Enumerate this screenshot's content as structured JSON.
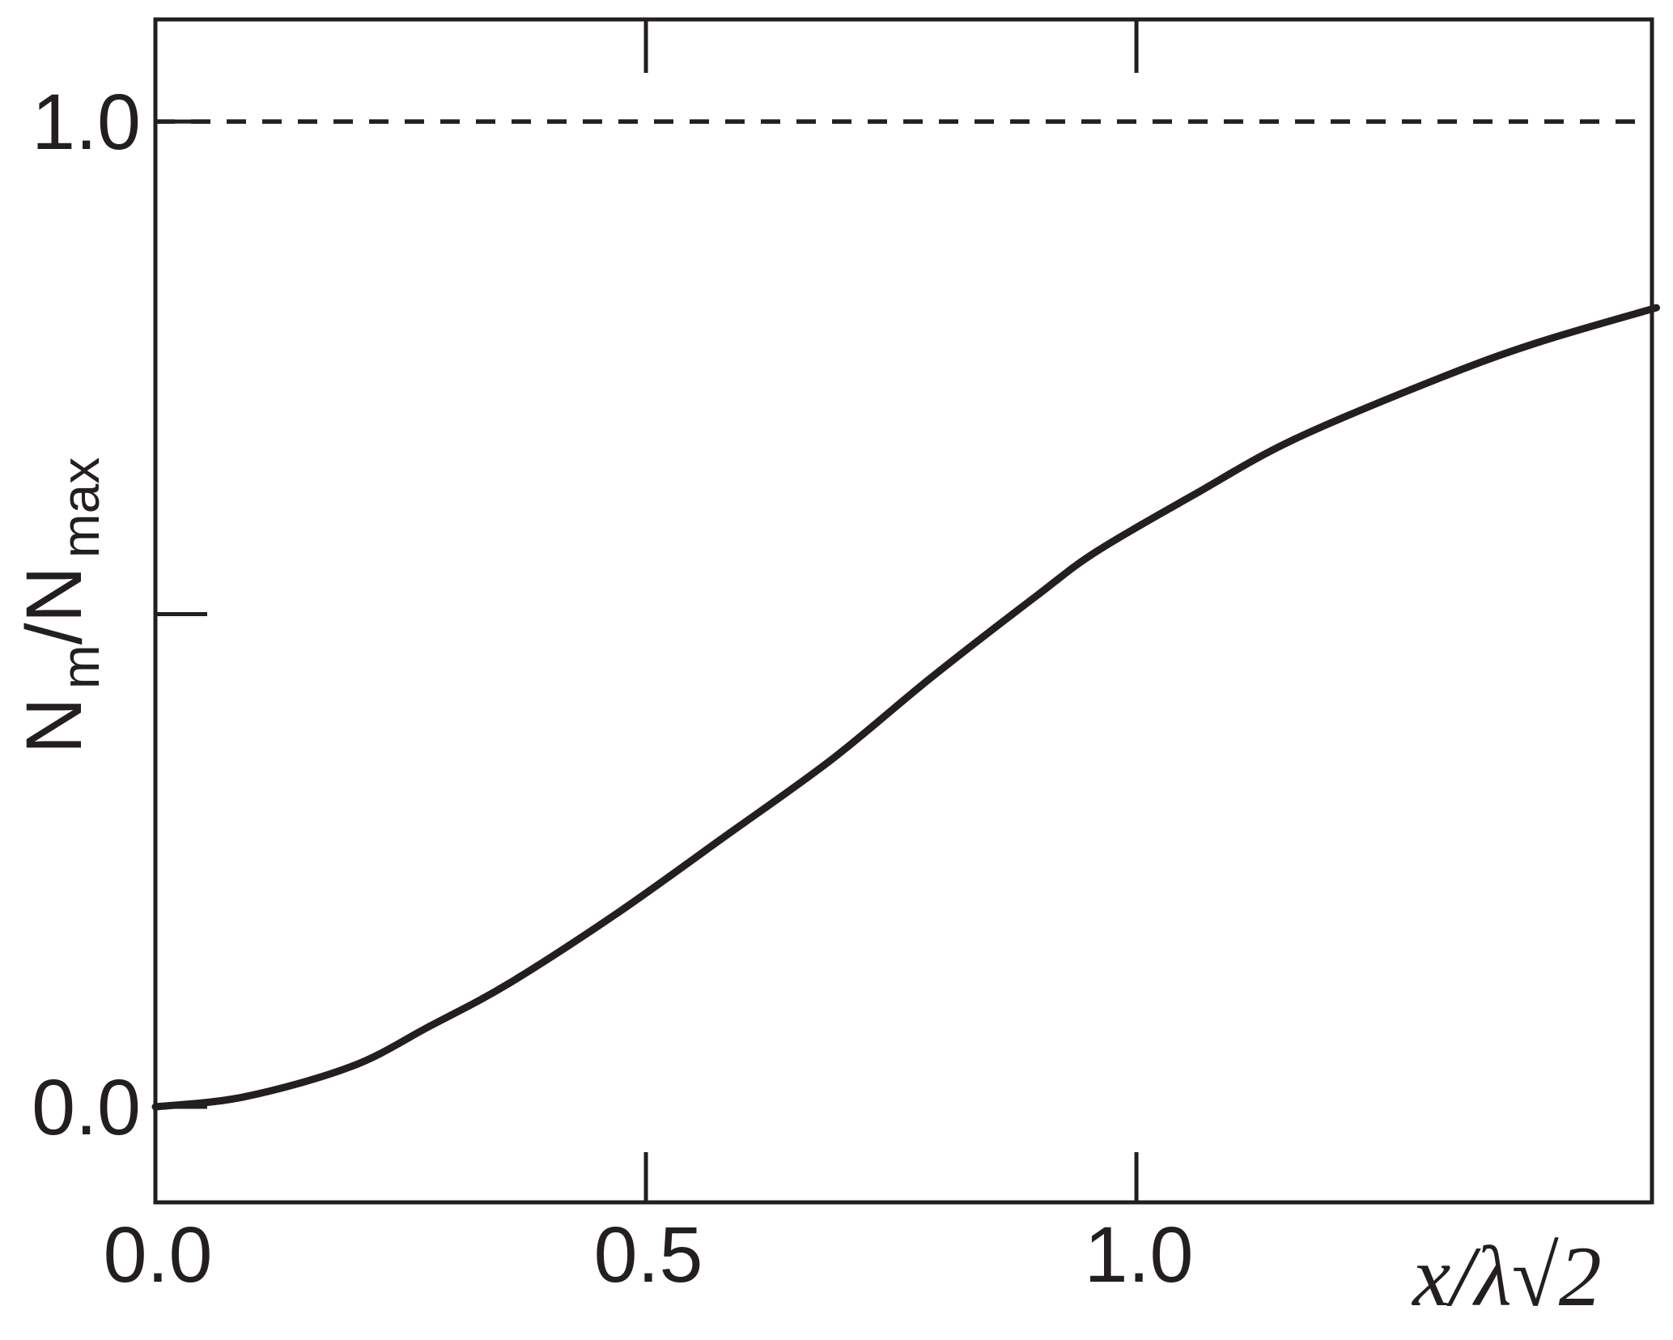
{
  "figure": {
    "background": "#ffffff",
    "ink_color": "#231f20"
  },
  "chart_data": {
    "type": "line",
    "title": "",
    "xlabel": "x/λ√2",
    "ylabel": "N_m/N_max",
    "ylabel_parts": [
      {
        "text": "N",
        "sub": false
      },
      {
        "text": "m",
        "sub": true
      },
      {
        "text": "/N",
        "sub": false
      },
      {
        "text": "max",
        "sub": true
      }
    ],
    "xlim": [
      0,
      1.5255
    ],
    "ylim": [
      -0.097,
      1.1036
    ],
    "grid": false,
    "legend": "none",
    "x_ticks": [
      {
        "value": 0.0,
        "label": "0.0",
        "mark": false
      },
      {
        "value": 0.5,
        "label": "0.5",
        "mark": true
      },
      {
        "value": 1.0,
        "label": "1.0",
        "mark": true
      }
    ],
    "x_ticks_top": [
      0.5,
      1.0
    ],
    "y_ticks": [
      {
        "value": 0.0,
        "label": "0.0",
        "mark": true
      },
      {
        "value": 0.5,
        "label": "",
        "mark": true
      },
      {
        "value": 1.0,
        "label": "1.0",
        "mark": true
      }
    ],
    "reference_line": {
      "y": 1.0,
      "style": "dashed"
    },
    "series": [
      {
        "name": "Nm/Nmax",
        "x": [
          0.0,
          0.09,
          0.2,
          0.28,
          0.36,
          0.47,
          0.58,
          0.69,
          0.79,
          0.9,
          0.96,
          1.06,
          1.16,
          1.31,
          1.41,
          1.53
        ],
        "y": [
          0.0,
          0.01,
          0.041,
          0.082,
          0.125,
          0.196,
          0.274,
          0.353,
          0.435,
          0.52,
          0.564,
          0.622,
          0.677,
          0.74,
          0.776,
          0.811
        ]
      }
    ]
  }
}
